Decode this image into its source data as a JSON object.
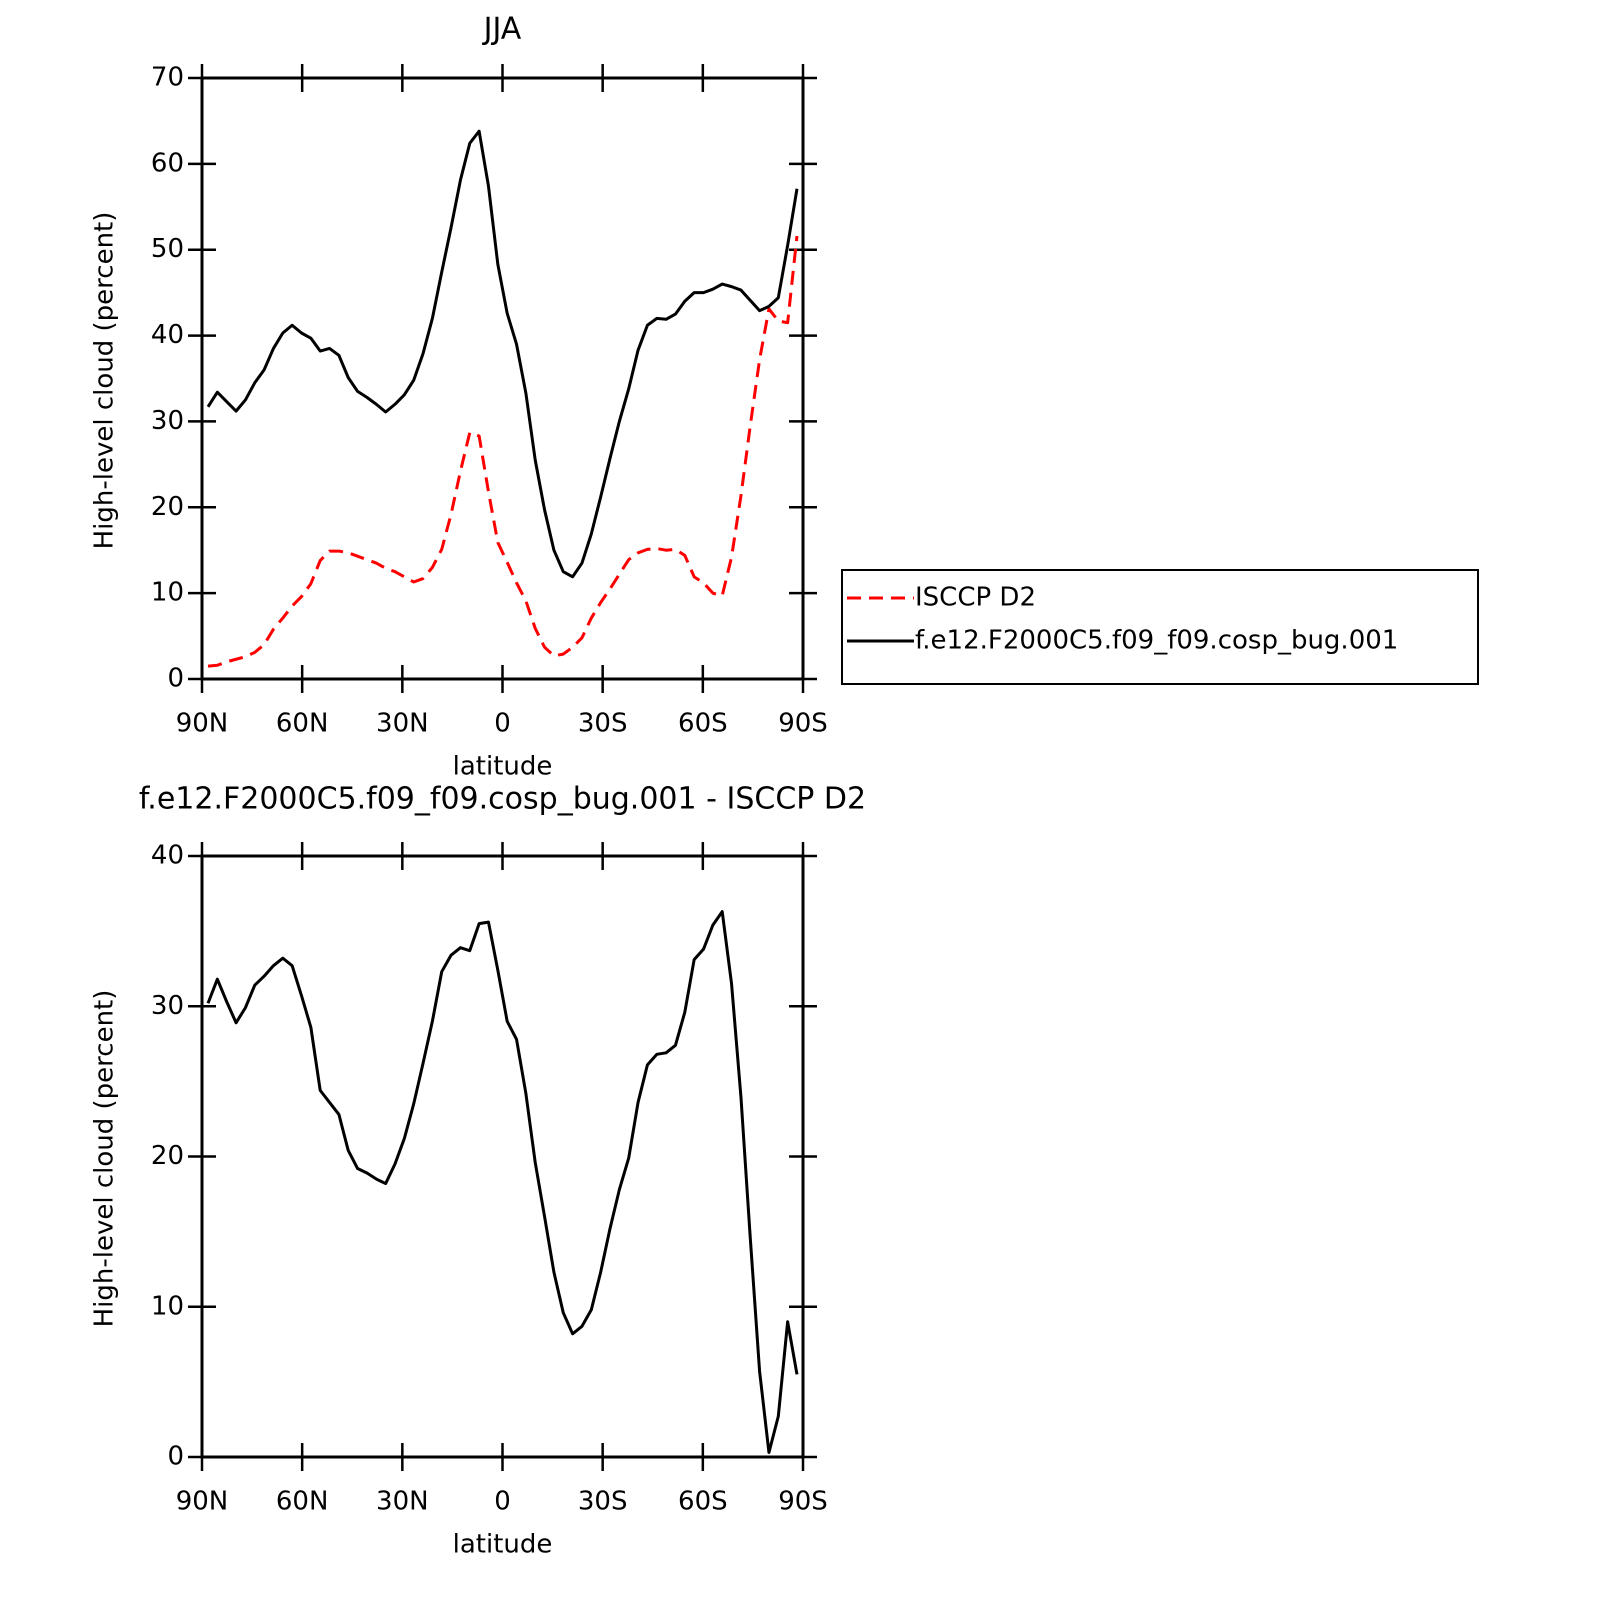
{
  "chart_data": [
    {
      "type": "line",
      "title": "JJA",
      "ylabel": "High-level cloud (percent)",
      "xlabel": "latitude",
      "x": [
        88.2,
        85.4,
        82.6,
        79.8,
        77.0,
        74.2,
        71.4,
        68.6,
        65.8,
        63.0,
        60.2,
        57.4,
        54.6,
        51.8,
        49.0,
        46.2,
        43.4,
        40.6,
        37.8,
        35.0,
        32.2,
        29.4,
        26.6,
        23.8,
        21.0,
        18.2,
        15.4,
        12.6,
        9.8,
        7.0,
        4.2,
        1.4,
        -1.4,
        -4.2,
        -7.0,
        -9.8,
        -12.6,
        -15.4,
        -18.2,
        -21.0,
        -23.8,
        -26.6,
        -29.4,
        -32.2,
        -35.0,
        -37.8,
        -40.6,
        -43.4,
        -46.2,
        -49.0,
        -51.8,
        -54.6,
        -57.4,
        -60.2,
        -63.0,
        -65.8,
        -68.6,
        -71.4,
        -74.2,
        -77.0,
        -79.8,
        -82.6,
        -85.4,
        -88.2
      ],
      "series": [
        {
          "name": "ISCCP D2",
          "color": "#ff0000",
          "style": "dashed",
          "values": [
            1.5,
            1.6,
            2.0,
            2.3,
            2.6,
            3.1,
            4.0,
            5.8,
            7.1,
            8.5,
            9.6,
            11.1,
            13.8,
            14.9,
            14.9,
            14.7,
            14.3,
            13.9,
            13.5,
            12.9,
            12.5,
            11.9,
            11.3,
            11.7,
            13.0,
            15.1,
            19.2,
            24.2,
            28.7,
            28.3,
            21.8,
            15.9,
            13.6,
            11.2,
            9.1,
            5.9,
            3.7,
            2.7,
            2.9,
            3.7,
            4.8,
            7.1,
            8.9,
            10.5,
            12.2,
            13.9,
            14.7,
            15.1,
            15.2,
            15.0,
            15.1,
            14.4,
            11.9,
            11.2,
            10.0,
            9.7,
            14.2,
            21.3,
            29.5,
            37.2,
            43.1,
            41.7,
            41.5,
            51.6
          ]
        },
        {
          "name": "f.e12.F2000C5.f09_f09.cosp_bug.001",
          "color": "#000000",
          "style": "solid",
          "values": [
            31.7,
            33.4,
            32.3,
            31.2,
            32.5,
            34.5,
            36.0,
            38.5,
            40.3,
            41.2,
            40.3,
            39.7,
            38.2,
            38.5,
            37.7,
            35.1,
            33.5,
            32.8,
            32.0,
            31.1,
            32.0,
            33.1,
            34.8,
            37.9,
            42.0,
            47.4,
            52.6,
            58.1,
            62.4,
            63.8,
            57.4,
            48.3,
            42.6,
            39.0,
            33.3,
            25.5,
            19.7,
            15.0,
            12.5,
            11.9,
            13.5,
            16.9,
            21.2,
            25.7,
            30.0,
            33.8,
            38.3,
            41.2,
            42.0,
            41.9,
            42.5,
            44.0,
            45.0,
            45.0,
            45.4,
            46.0,
            45.7,
            45.3,
            44.1,
            42.9,
            43.4,
            44.4,
            50.5,
            57.1
          ]
        }
      ],
      "xlim": [
        90,
        -90
      ],
      "xticks": [
        {
          "value": 90,
          "label": "90N"
        },
        {
          "value": 60,
          "label": "60N"
        },
        {
          "value": 30,
          "label": "30N"
        },
        0,
        {
          "value": -30,
          "label": "30S"
        },
        {
          "value": -60,
          "label": "60S"
        },
        {
          "value": -90,
          "label": "90S"
        }
      ],
      "ylim": [
        0,
        70
      ],
      "yticks": [
        0,
        10,
        20,
        30,
        40,
        50,
        60,
        70
      ],
      "legend": "right"
    },
    {
      "type": "line",
      "title": "f.e12.F2000C5.f09_f09.cosp_bug.001 - ISCCP D2",
      "ylabel": "High-level cloud (percent)",
      "xlabel": "latitude",
      "x": [
        88.2,
        85.4,
        82.6,
        79.8,
        77.0,
        74.2,
        71.4,
        68.6,
        65.8,
        63.0,
        60.2,
        57.4,
        54.6,
        51.8,
        49.0,
        46.2,
        43.4,
        40.6,
        37.8,
        35.0,
        32.2,
        29.4,
        26.6,
        23.8,
        21.0,
        18.2,
        15.4,
        12.6,
        9.8,
        7.0,
        4.2,
        1.4,
        -1.4,
        -4.2,
        -7.0,
        -9.8,
        -12.6,
        -15.4,
        -18.2,
        -21.0,
        -23.8,
        -26.6,
        -29.4,
        -32.2,
        -35.0,
        -37.8,
        -40.6,
        -43.4,
        -46.2,
        -49.0,
        -51.8,
        -54.6,
        -57.4,
        -60.2,
        -63.0,
        -65.8,
        -68.6,
        -71.4,
        -74.2,
        -77.0,
        -79.8,
        -82.6,
        -85.4,
        -88.2
      ],
      "series": [
        {
          "color": "#000000",
          "style": "solid",
          "values": [
            30.2,
            31.8,
            30.3,
            28.9,
            29.9,
            31.4,
            32.0,
            32.7,
            33.2,
            32.7,
            30.7,
            28.6,
            24.4,
            23.6,
            22.8,
            20.4,
            19.2,
            18.9,
            18.5,
            18.2,
            19.5,
            21.2,
            23.5,
            26.2,
            29.0,
            32.3,
            33.4,
            33.9,
            33.7,
            35.5,
            35.6,
            32.4,
            29.0,
            27.8,
            24.2,
            19.6,
            16.0,
            12.3,
            9.6,
            8.2,
            8.7,
            9.8,
            12.3,
            15.2,
            17.8,
            19.9,
            23.6,
            26.1,
            26.8,
            26.9,
            27.4,
            29.6,
            33.1,
            33.8,
            35.4,
            36.3,
            31.5,
            24.0,
            14.6,
            5.7,
            0.3,
            2.7,
            9.0,
            5.5
          ]
        }
      ],
      "xlim": [
        90,
        -90
      ],
      "xticks": [
        {
          "value": 90,
          "label": "90N"
        },
        {
          "value": 60,
          "label": "60N"
        },
        {
          "value": 30,
          "label": "30N"
        },
        0,
        {
          "value": -30,
          "label": "30S"
        },
        {
          "value": -60,
          "label": "60S"
        },
        {
          "value": -90,
          "label": "90S"
        }
      ],
      "ylim": [
        0,
        40
      ],
      "yticks": [
        0,
        10,
        20,
        30,
        40
      ]
    }
  ]
}
